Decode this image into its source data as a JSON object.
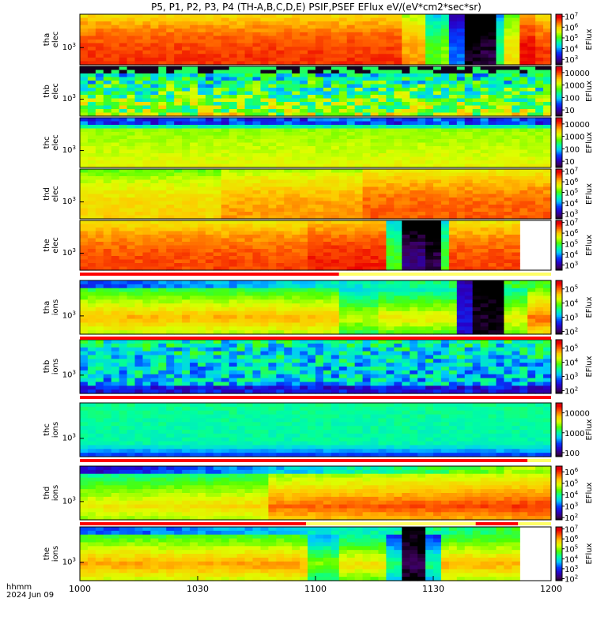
{
  "title": "P5, P1, P2, P3, P4 (TH-A,B,C,D,E) PSIF,PSEF EFlux eV/(eV*cm2*sec*sr)",
  "footer": {
    "line1": "hhmm",
    "line2": "2024 Jun 09"
  },
  "colorbar_label": "EFlux",
  "chart_data": {
    "type": "heatmap",
    "x_label": "hhmm",
    "date": "2024 Jun 09",
    "x_ticks": [
      "1000",
      "1030",
      "1100",
      "1130",
      "1200"
    ],
    "x_range": [
      "10:00",
      "12:00"
    ],
    "panels": [
      {
        "id": "tha-elec",
        "label1": "tha",
        "label2": "elec",
        "ytick": "10^3",
        "cbar_ticks": [
          "10^7",
          "10^6",
          "10^5",
          "10^4",
          "10^3"
        ],
        "cbar_log_range": [
          2.5,
          7.2
        ],
        "profile": "rampHigh",
        "segments": [
          {
            "x0": 0,
            "x1": 0.68,
            "level": 0.9
          },
          {
            "x0": 0.68,
            "x1": 0.74,
            "level": 0.8
          },
          {
            "x0": 0.74,
            "x1": 0.76,
            "level": 0.55
          },
          {
            "x0": 0.76,
            "x1": 0.78,
            "level": 0.6
          },
          {
            "x0": 0.78,
            "x1": 0.82,
            "level": 0.3
          },
          {
            "x0": 0.82,
            "x1": 0.85,
            "level": 0.02
          },
          {
            "x0": 0.85,
            "x1": 0.88,
            "level": 0.05
          },
          {
            "x0": 0.88,
            "x1": 0.9,
            "level": 0.5
          },
          {
            "x0": 0.9,
            "x1": 0.93,
            "level": 0.72
          },
          {
            "x0": 0.93,
            "x1": 0.96,
            "level": 0.95
          },
          {
            "x0": 0.96,
            "x1": 1,
            "level": 0.9
          }
        ]
      },
      {
        "id": "thb-elec",
        "label1": "thb",
        "label2": "elec",
        "ytick": "10^3",
        "cbar_ticks": [
          "10000",
          "1000",
          "100",
          "10"
        ],
        "cbar_log_range": [
          0.5,
          4.5
        ],
        "profile": "noisy",
        "segments": [
          {
            "x0": 0,
            "x1": 1,
            "level": 0.45
          }
        ]
      },
      {
        "id": "thc-elec",
        "label1": "thc",
        "label2": "elec",
        "ytick": "10^3",
        "cbar_ticks": [
          "10000",
          "1000",
          "100",
          "10"
        ],
        "cbar_log_range": [
          0.5,
          4.5
        ],
        "profile": "bandedC",
        "segments": [
          {
            "x0": 0,
            "x1": 1,
            "level": 0.52
          }
        ]
      },
      {
        "id": "thd-elec",
        "label1": "thd",
        "label2": "elec",
        "ytick": "10^3",
        "cbar_ticks": [
          "10^7",
          "10^6",
          "10^5",
          "10^4",
          "10^3"
        ],
        "cbar_log_range": [
          2.5,
          7.2
        ],
        "profile": "rampHigh",
        "segments": [
          {
            "x0": 0,
            "x1": 0.3,
            "level": 0.74
          },
          {
            "x0": 0.3,
            "x1": 0.6,
            "level": 0.8
          },
          {
            "x0": 0.6,
            "x1": 1,
            "level": 0.86
          }
        ]
      },
      {
        "id": "the-elec",
        "label1": "the",
        "label2": "elec",
        "ytick": "10^3",
        "cbar_ticks": [
          "10^7",
          "10^6",
          "10^5",
          "10^4",
          "10^3"
        ],
        "cbar_log_range": [
          2.5,
          7.2
        ],
        "profile": "rampHigh",
        "blank_from": 0.94,
        "segments": [
          {
            "x0": 0,
            "x1": 0.48,
            "level": 0.88
          },
          {
            "x0": 0.48,
            "x1": 0.65,
            "level": 0.92
          },
          {
            "x0": 0.65,
            "x1": 0.69,
            "level": 0.55
          },
          {
            "x0": 0.69,
            "x1": 0.73,
            "level": 0.1
          },
          {
            "x0": 0.73,
            "x1": 0.76,
            "level": 0.05
          },
          {
            "x0": 0.76,
            "x1": 0.78,
            "level": 0.55
          },
          {
            "x0": 0.78,
            "x1": 0.94,
            "level": 0.88
          }
        ]
      },
      {
        "id": "tha-ions",
        "label1": "tha",
        "label2": "ions",
        "ytick": "10^3",
        "cbar_ticks": [
          "10^5",
          "10^4",
          "10^3",
          "10^2"
        ],
        "cbar_log_range": [
          1.8,
          5.6
        ],
        "profile": "ionsA",
        "segments": [
          {
            "x0": 0,
            "x1": 0.55,
            "level": 0.78
          },
          {
            "x0": 0.55,
            "x1": 0.64,
            "level": 0.65
          },
          {
            "x0": 0.64,
            "x1": 0.8,
            "level": 0.7
          },
          {
            "x0": 0.8,
            "x1": 0.83,
            "level": 0.2
          },
          {
            "x0": 0.83,
            "x1": 0.9,
            "level": 0.03
          },
          {
            "x0": 0.9,
            "x1": 0.95,
            "level": 0.7
          },
          {
            "x0": 0.95,
            "x1": 1,
            "level": 0.85
          }
        ]
      },
      {
        "id": "thb-ions",
        "label1": "thb",
        "label2": "ions",
        "ytick": "10^3",
        "cbar_ticks": [
          "10^5",
          "10^4",
          "10^3",
          "10^2"
        ],
        "cbar_log_range": [
          1.8,
          5.6
        ],
        "profile": "ionsB",
        "segments": [
          {
            "x0": 0,
            "x1": 1,
            "level": 0.3
          }
        ]
      },
      {
        "id": "thc-ions",
        "label1": "thc",
        "label2": "ions",
        "ytick": "10^3",
        "cbar_ticks": [
          "10000",
          "1000",
          "100"
        ],
        "cbar_log_range": [
          1.8,
          4.5
        ],
        "profile": "ionsC",
        "segments": [
          {
            "x0": 0,
            "x1": 1,
            "level": 0.42
          }
        ]
      },
      {
        "id": "thd-ions",
        "label1": "thd",
        "label2": "ions",
        "ytick": "10^3",
        "cbar_ticks": [
          "10^6",
          "10^5",
          "10^4",
          "10^3",
          "10^2"
        ],
        "cbar_log_range": [
          1.8,
          6.5
        ],
        "profile": "ionsD",
        "segments": [
          {
            "x0": 0,
            "x1": 0.4,
            "level": 0.7
          },
          {
            "x0": 0.4,
            "x1": 1,
            "level": 0.8
          }
        ]
      },
      {
        "id": "the-ions",
        "label1": "the",
        "label2": "ions",
        "ytick": "10^3",
        "cbar_ticks": [
          "10^7",
          "10^6",
          "10^5",
          "10^4",
          "10^3",
          "10^2"
        ],
        "cbar_log_range": [
          1.8,
          7.2
        ],
        "profile": "ionsA",
        "blank_from": 0.94,
        "segments": [
          {
            "x0": 0,
            "x1": 0.48,
            "level": 0.8
          },
          {
            "x0": 0.48,
            "x1": 0.55,
            "level": 0.6
          },
          {
            "x0": 0.55,
            "x1": 0.65,
            "level": 0.72
          },
          {
            "x0": 0.65,
            "x1": 0.69,
            "level": 0.5
          },
          {
            "x0": 0.69,
            "x1": 0.73,
            "level": 0.05
          },
          {
            "x0": 0.73,
            "x1": 0.76,
            "level": 0.5
          },
          {
            "x0": 0.76,
            "x1": 0.94,
            "level": 0.78
          }
        ]
      }
    ],
    "mode_bars": [
      {
        "after_panel": "the-elec",
        "upper": [
          {
            "x0": 0,
            "x1": 0.55,
            "color": "#ff0000"
          },
          {
            "x0": 0.55,
            "x1": 1,
            "color": "#ffff66"
          }
        ]
      },
      {
        "after_panel": "tha-ions",
        "upper": [
          {
            "x0": 0,
            "x1": 1,
            "color": "#ff0000"
          }
        ]
      },
      {
        "after_panel": "thb-ions",
        "upper": [
          {
            "x0": 0,
            "x1": 1,
            "color": "#ff0000"
          }
        ]
      },
      {
        "after_panel": "thc-ions",
        "upper": [
          {
            "x0": 0,
            "x1": 0.95,
            "color": "#ff0000"
          },
          {
            "x0": 0.95,
            "x1": 1,
            "color": "#ffff66"
          }
        ]
      },
      {
        "after_panel": "thd-ions",
        "upper": [
          {
            "x0": 0,
            "x1": 0.48,
            "color": "#ff0000"
          },
          {
            "x0": 0.48,
            "x1": 0.84,
            "color": "#ffff66"
          },
          {
            "x0": 0.84,
            "x1": 0.93,
            "color": "#ff0000"
          },
          {
            "x0": 0.93,
            "x1": 1,
            "color": "#ffff66"
          }
        ]
      }
    ]
  }
}
